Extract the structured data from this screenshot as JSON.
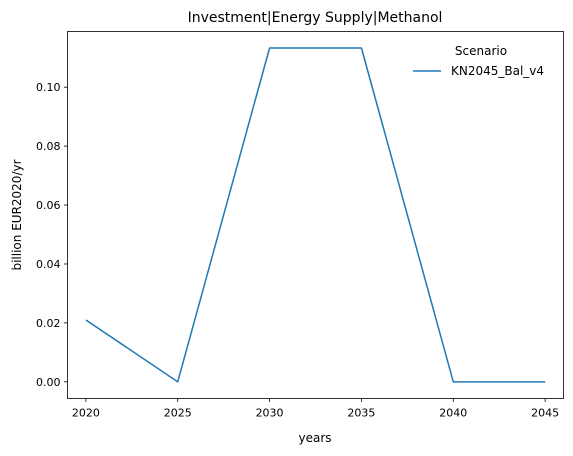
{
  "chart_data": {
    "type": "line",
    "title": "Investment|Energy Supply|Methanol",
    "xlabel": "years",
    "ylabel": "billion EUR2020/yr",
    "x": [
      2020,
      2025,
      2030,
      2035,
      2040,
      2045
    ],
    "x_ticks": [
      "2020",
      "2025",
      "2030",
      "2035",
      "2040",
      "2045"
    ],
    "y_ticks": [
      "0.00",
      "0.02",
      "0.04",
      "0.06",
      "0.08",
      "0.10"
    ],
    "xlim": [
      2019,
      2046
    ],
    "ylim": [
      -0.00566,
      0.1189
    ],
    "grid": false,
    "legend": {
      "title": "Scenario",
      "position": "top-right"
    },
    "series": [
      {
        "name": "KN2045_Bal_v4",
        "color": "#1f77b4",
        "values": [
          0.021,
          0.0,
          0.1133,
          0.1133,
          0.0,
          0.0
        ]
      }
    ]
  }
}
